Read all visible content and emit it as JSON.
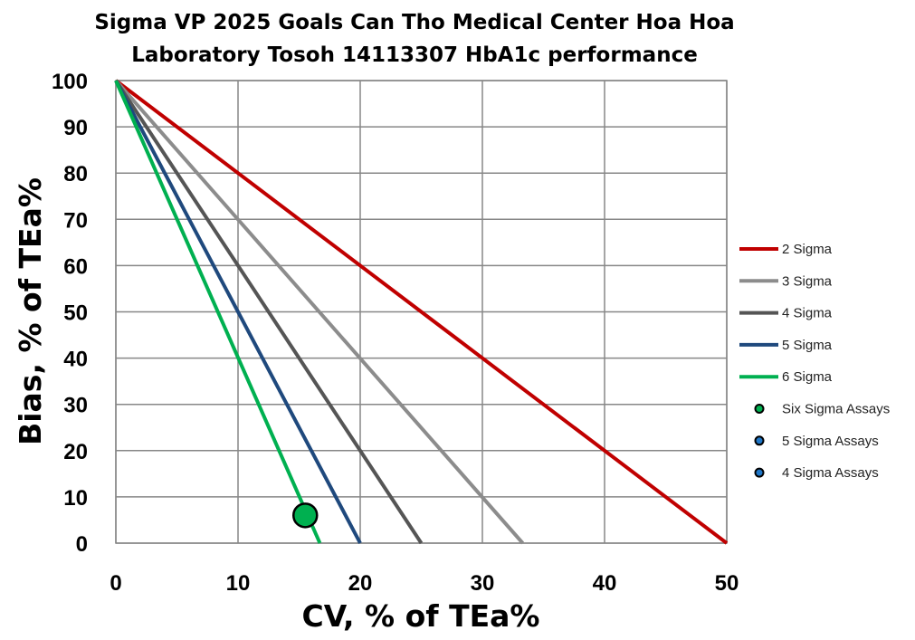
{
  "chart_data": {
    "type": "line",
    "title": [
      "Sigma VP 2025 Goals Can Tho Medical Center Hoa Hoa",
      "Laboratory  Tosoh 14113307 HbA1c performance"
    ],
    "xlabel": "CV, % of TEa%",
    "ylabel": "Bias, % of TEa%",
    "xlim": [
      0,
      50
    ],
    "ylim": [
      0,
      100
    ],
    "xticks": [
      0,
      10,
      20,
      30,
      40,
      50
    ],
    "yticks": [
      0,
      10,
      20,
      30,
      40,
      50,
      60,
      70,
      80,
      90,
      100
    ],
    "grid": true,
    "legend_position": "right",
    "series": [
      {
        "name": "2 Sigma",
        "color": "#C00000",
        "x": [
          0,
          50
        ],
        "y": [
          100,
          0
        ]
      },
      {
        "name": "3 Sigma",
        "color": "#8C8C8C",
        "x": [
          0,
          33.3
        ],
        "y": [
          100,
          0
        ]
      },
      {
        "name": "4 Sigma",
        "color": "#555555",
        "x": [
          0,
          25
        ],
        "y": [
          100,
          0
        ]
      },
      {
        "name": "5 Sigma",
        "color": "#1F497D",
        "x": [
          0,
          20
        ],
        "y": [
          100,
          0
        ]
      },
      {
        "name": "6 Sigma",
        "color": "#00B050",
        "x": [
          0,
          16.7
        ],
        "y": [
          100,
          0
        ]
      }
    ],
    "points": [
      {
        "name": "Six Sigma Assays",
        "color": "#00B050",
        "data": [
          {
            "x": 15.5,
            "y": 6
          }
        ]
      },
      {
        "name": "5 Sigma Assays",
        "color": "#1F77C8",
        "data": []
      },
      {
        "name": "4 Sigma Assays",
        "color": "#1F77C8",
        "data": []
      }
    ]
  }
}
